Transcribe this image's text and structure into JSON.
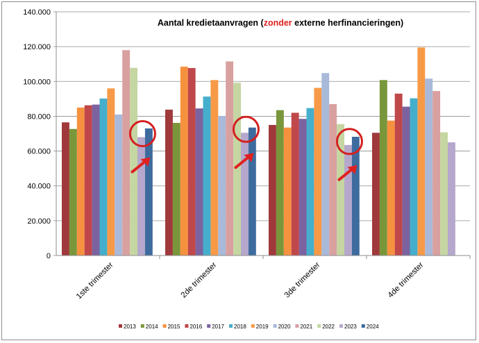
{
  "chart_data": {
    "type": "bar",
    "title_parts": {
      "before": "Aantal kredietaanvragen (",
      "highlight": "zonder",
      "after": " externe herfinancieringen)"
    },
    "highlight_color": "#e02020",
    "categories": [
      "1ste trimester",
      "2de trimester",
      "3de trimester",
      "4de trimester"
    ],
    "ylim": [
      0,
      140000
    ],
    "yticks": [
      "0",
      "20.000",
      "40.000",
      "60.000",
      "80.000",
      "100.000",
      "120.000",
      "140.000"
    ],
    "ytick_values": [
      0,
      20000,
      40000,
      60000,
      80000,
      100000,
      120000,
      140000
    ],
    "grid": true,
    "legend_position": "bottom",
    "series": [
      {
        "name": "2013",
        "color": "#a0393c",
        "values": [
          76500,
          83800,
          75000,
          70500
        ]
      },
      {
        "name": "2014",
        "color": "#79963a",
        "values": [
          72700,
          76200,
          83500,
          100800
        ]
      },
      {
        "name": "2015",
        "color": "#f6913f",
        "values": [
          85000,
          108500,
          73500,
          77500
        ]
      },
      {
        "name": "2016",
        "color": "#c0474a",
        "values": [
          86300,
          107700,
          82000,
          93000
        ]
      },
      {
        "name": "2017",
        "color": "#7c63a0",
        "values": [
          86700,
          84500,
          78500,
          85500
        ]
      },
      {
        "name": "2018",
        "color": "#45aecc",
        "values": [
          90200,
          91300,
          84700,
          90300
        ]
      },
      {
        "name": "2019",
        "color": "#f79a48",
        "values": [
          96000,
          100800,
          96300,
          119500
        ]
      },
      {
        "name": "2020",
        "color": "#a9b9da",
        "values": [
          81000,
          80200,
          104800,
          101600
        ]
      },
      {
        "name": "2021",
        "color": "#d9a0a0",
        "values": [
          118000,
          111500,
          87000,
          94500
        ]
      },
      {
        "name": "2022",
        "color": "#c5d6a2",
        "values": [
          107800,
          99200,
          75500,
          70800
        ]
      },
      {
        "name": "2023",
        "color": "#b5a8cc",
        "values": [
          68000,
          70500,
          63500,
          65000
        ]
      },
      {
        "name": "2024",
        "color": "#3e6b9e",
        "values": [
          73000,
          73500,
          68200,
          null
        ]
      }
    ],
    "annotations": {
      "circle_color": "#d42020",
      "arrow_color": "#e02020",
      "circled_series": "2023",
      "circled_categories": [
        0,
        1,
        2
      ]
    }
  }
}
